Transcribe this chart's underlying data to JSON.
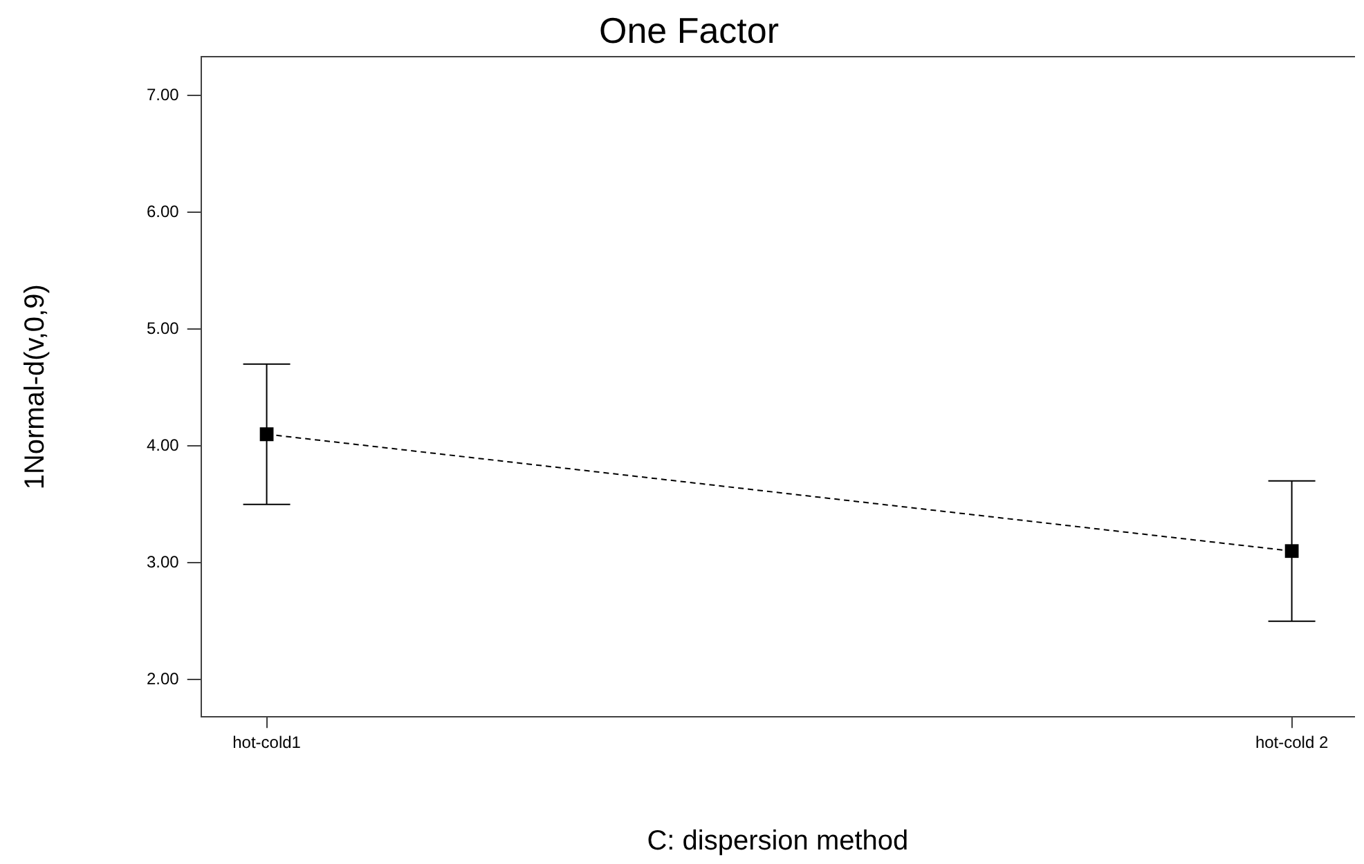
{
  "chart_data": {
    "type": "line",
    "title": "One Factor",
    "xlabel": "C: dispersion method",
    "ylabel": "1Normal-d(v,0,9)",
    "categories": [
      "hot-cold1",
      "hot-cold 2"
    ],
    "values": [
      4.1,
      3.1
    ],
    "errors": [
      0.6,
      0.6
    ],
    "color": "#000000",
    "ylim": [
      1.68,
      7.33
    ],
    "yticks": [
      {
        "value": 2,
        "label": "2.00"
      },
      {
        "value": 3,
        "label": "3.00"
      },
      {
        "value": 4,
        "label": "4.00"
      },
      {
        "value": 5,
        "label": "5.00"
      },
      {
        "value": 6,
        "label": "6.00"
      },
      {
        "value": 7,
        "label": "7.00"
      }
    ],
    "grid": false,
    "legend": false,
    "marker": "square",
    "line_style": "dashed"
  }
}
